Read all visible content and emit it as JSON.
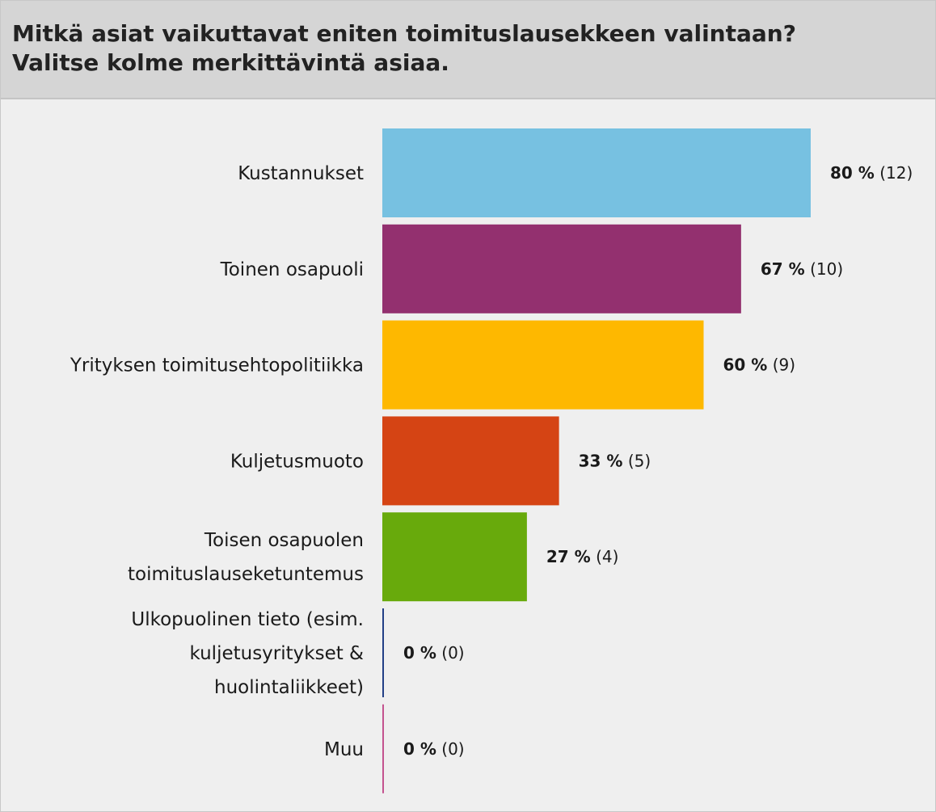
{
  "chart_data": {
    "type": "bar",
    "orientation": "horizontal",
    "title_lines": [
      "Mitkä asiat vaikuttavat eniten toimituslausekkeen valintaan?",
      "Valitse kolme merkittävintä asiaa."
    ],
    "categories": [
      [
        "Kustannukset"
      ],
      [
        "Toinen osapuoli"
      ],
      [
        "Yrityksen toimitusehtopolitiikka"
      ],
      [
        "Kuljetusmuoto"
      ],
      [
        "Toisen osapuolen",
        "toimituslauseketuntemus"
      ],
      [
        "Ulkopuolinen tieto (esim.",
        "kuljetusyritykset &",
        "huolintaliikkeet)"
      ],
      [
        "Muu"
      ]
    ],
    "values": [
      80,
      67,
      60,
      33,
      27,
      0,
      0
    ],
    "percent_labels": [
      "80 %",
      "67 %",
      "60 %",
      "33 %",
      "27 %",
      "0 %",
      "0 %"
    ],
    "count_labels": [
      "(12)",
      "(10)",
      "(9)",
      "(5)",
      "(4)",
      "(0)",
      "(0)"
    ],
    "colors": [
      "#77c1e1",
      "#93306f",
      "#feb800",
      "#d54414",
      "#68aa0c",
      "#233f86",
      "#c4538f"
    ],
    "xlim": [
      0,
      100
    ],
    "grid": false,
    "legend": "none"
  }
}
